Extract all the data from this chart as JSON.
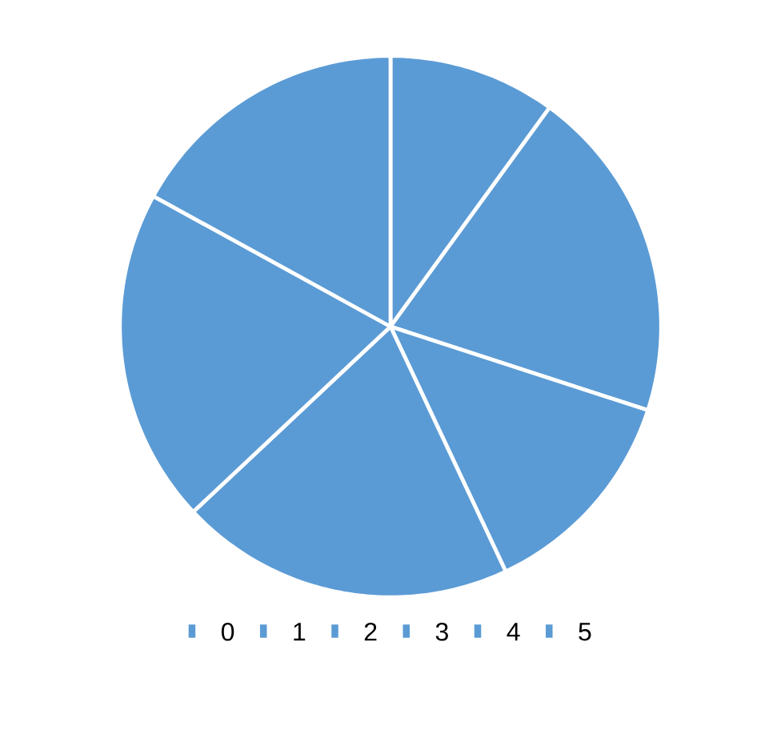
{
  "chart_data": {
    "type": "pie",
    "categories": [
      "0",
      "1",
      "2",
      "3",
      "4",
      "5"
    ],
    "values": [
      10,
      20,
      13,
      20,
      20,
      17
    ],
    "colors": [
      "#5b9bd5",
      "#5b9bd5",
      "#5b9bd5",
      "#5b9bd5",
      "#5b9bd5",
      "#5b9bd5"
    ],
    "legend": "bottom"
  }
}
